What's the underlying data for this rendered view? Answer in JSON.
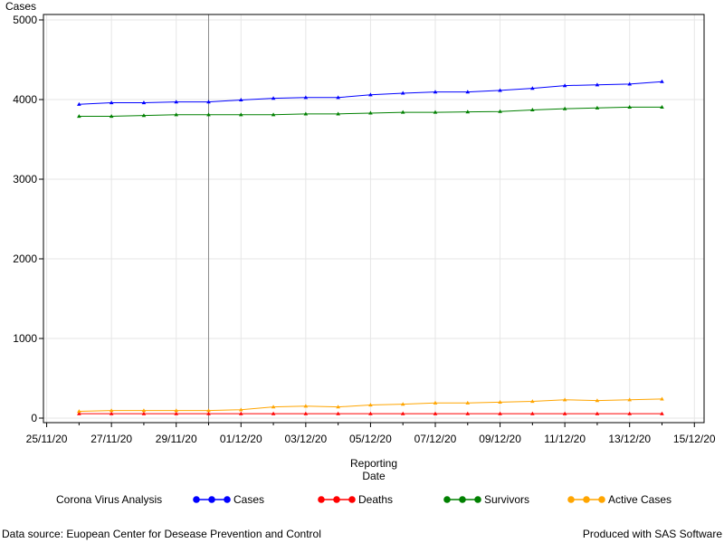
{
  "chart_data": {
    "type": "line",
    "ylabel": "Cases",
    "xlabel_lines": [
      "Reporting",
      "Date"
    ],
    "ylim": [
      0,
      5000
    ],
    "yticks": [
      0,
      1000,
      2000,
      3000,
      4000,
      5000
    ],
    "xlim": [
      "2020-11-25",
      "2020-12-15"
    ],
    "xticks": [
      "25/11/20",
      "27/11/20",
      "29/11/20",
      "01/12/20",
      "03/12/20",
      "05/12/20",
      "07/12/20",
      "09/12/20",
      "11/12/20",
      "13/12/20",
      "15/12/20"
    ],
    "grid": true,
    "reference_line_date": "2020-11-30",
    "dates": [
      "2020-11-26",
      "2020-11-27",
      "2020-11-28",
      "2020-11-29",
      "2020-11-30",
      "2020-12-01",
      "2020-12-02",
      "2020-12-03",
      "2020-12-04",
      "2020-12-05",
      "2020-12-06",
      "2020-12-07",
      "2020-12-08",
      "2020-12-09",
      "2020-12-10",
      "2020-12-11",
      "2020-12-12",
      "2020-12-13",
      "2020-12-14"
    ],
    "series": [
      {
        "name": "Cases",
        "color": "#0000ff",
        "values": [
          3940,
          3960,
          3960,
          3970,
          3970,
          3995,
          4015,
          4025,
          4025,
          4060,
          4080,
          4095,
          4095,
          4115,
          4140,
          4175,
          4185,
          4195,
          4225
        ]
      },
      {
        "name": "Deaths",
        "color": "#ff0000",
        "values": [
          55,
          55,
          55,
          55,
          55,
          55,
          55,
          55,
          55,
          55,
          55,
          55,
          55,
          55,
          55,
          55,
          55,
          55,
          55
        ]
      },
      {
        "name": "Survivors",
        "color": "#008000",
        "values": [
          3790,
          3790,
          3800,
          3810,
          3810,
          3810,
          3810,
          3820,
          3820,
          3830,
          3840,
          3840,
          3845,
          3850,
          3870,
          3885,
          3895,
          3905,
          3905
        ]
      },
      {
        "name": "Active Cases",
        "color": "#ffa500",
        "values": [
          85,
          95,
          95,
          95,
          95,
          105,
          140,
          150,
          140,
          165,
          175,
          190,
          190,
          200,
          210,
          230,
          220,
          230,
          240
        ]
      }
    ],
    "legend_title": "Corona Virus Analysis",
    "legend_position": "bottom"
  },
  "footer": {
    "left": "Data source: Euopean Center for Desease Prevention and Control",
    "right": "Produced with SAS Software"
  }
}
